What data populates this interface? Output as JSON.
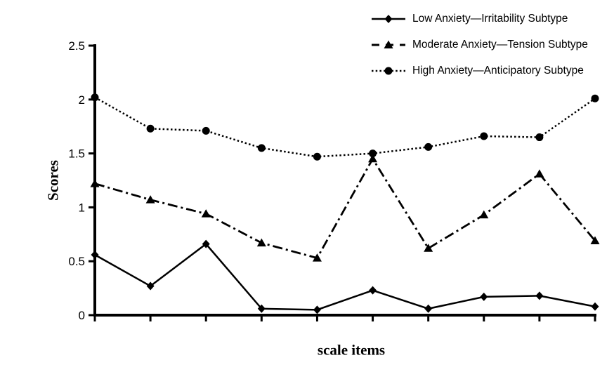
{
  "chart_data": {
    "type": "line",
    "title": "",
    "xlabel": "scale items",
    "ylabel": "Scores",
    "x": [
      1,
      2,
      3,
      4,
      5,
      6,
      7,
      8,
      9,
      10
    ],
    "xtick_labels": [
      "",
      "",
      "",
      "",
      "",
      "",
      "",
      "",
      "",
      ""
    ],
    "yticks": [
      0,
      0.5,
      1,
      1.5,
      2,
      2.5
    ],
    "ytick_labels": [
      "0",
      "0.5",
      "1",
      "1.5",
      "2",
      "2.5"
    ],
    "ylim": [
      0,
      2.5
    ],
    "grid": false,
    "legend_position": "top-right",
    "series": [
      {
        "name": "Low Anxiety—Irritability Subtype",
        "marker": "diamond",
        "line_style": "solid",
        "color": "#000000",
        "values": [
          0.56,
          0.27,
          0.66,
          0.06,
          0.05,
          0.23,
          0.06,
          0.17,
          0.18,
          0.08
        ]
      },
      {
        "name": "Moderate Anxiety—Tension Subtype",
        "marker": "triangle",
        "line_style": "dash-dot",
        "color": "#000000",
        "values": [
          1.22,
          1.07,
          0.94,
          0.67,
          0.53,
          1.45,
          0.62,
          0.93,
          1.31,
          0.69
        ]
      },
      {
        "name": "High Anxiety—Anticipatory Subtype",
        "marker": "circle",
        "line_style": "dotted",
        "color": "#000000",
        "values": [
          2.02,
          1.73,
          1.71,
          1.55,
          1.47,
          1.5,
          1.56,
          1.66,
          1.65,
          2.01
        ]
      }
    ]
  },
  "colors": {
    "foreground": "#000000",
    "background": "#ffffff"
  }
}
